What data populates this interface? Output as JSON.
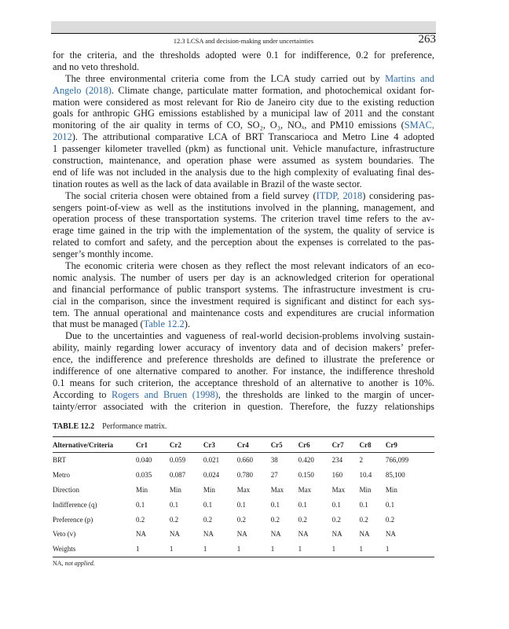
{
  "header": {
    "running_title": "12.3 LCSA and decision-making under uncertainties",
    "page_number": "263"
  },
  "colors": {
    "link": "#2a6bb0",
    "header_bar": "#dcdcdc"
  },
  "paragraphs": [
    {
      "indent": false,
      "lines": [
        [
          {
            "t": "for the criteria, and the thresholds adopted were 0.1 for indifference, 0.2 for preference,"
          }
        ],
        [
          {
            "t": "and no veto threshold."
          }
        ]
      ]
    },
    {
      "indent": true,
      "lines": [
        [
          {
            "t": "The three environmental criteria come from the LCA study carried out by "
          },
          {
            "t": "Martins and",
            "link": true
          }
        ],
        [
          {
            "t": "Angelo (2018)",
            "link": true
          },
          {
            "t": ". Climate change, particulate matter formation, and photochemical oxidant for-"
          }
        ],
        [
          {
            "t": "mation were considered as most relevant for Rio de Janeiro city due to the existing reduction"
          }
        ],
        [
          {
            "t": "goals for anthropic GHG emissions established by a municipal law of 2011 and the constant"
          }
        ],
        [
          {
            "t": "monitoring of the air quality in terms of CO, SO₂, O₃, NOₓ, and PM10 emissions ("
          },
          {
            "t": "SMAC,",
            "link": true
          }
        ],
        [
          {
            "t": "2012",
            "link": true
          },
          {
            "t": "). The attributional comparative LCA of BRT Transcarioca and Metro Line 4 adopted"
          }
        ],
        [
          {
            "t": "1 passenger kilometer travelled (pkm) as functional unit. Vehicle manufacture, infrastructure"
          }
        ],
        [
          {
            "t": "construction, maintenance, and operation phase were assumed as system boundaries. The"
          }
        ],
        [
          {
            "t": "end of life was not included in the analysis due to the high complexity of evaluating final des-"
          }
        ],
        [
          {
            "t": "tination routes as well as the lack of data available in Brazil of the waste sector."
          }
        ]
      ]
    },
    {
      "indent": true,
      "lines": [
        [
          {
            "t": "The social criteria chosen were obtained from a field survey ("
          },
          {
            "t": "ITDP, 2018",
            "link": true
          },
          {
            "t": ") considering pas-"
          }
        ],
        [
          {
            "t": "sengers point-of-view as well as the institutions involved in the planning, management, and"
          }
        ],
        [
          {
            "t": "operation process of these transportation systems. The criterion travel time refers to the av-"
          }
        ],
        [
          {
            "t": "erage time gained in the trip with the implementation of the system, the quality of service is"
          }
        ],
        [
          {
            "t": "related to comfort and safety, and the perception about the expenses is correlated to the pas-"
          }
        ],
        [
          {
            "t": "senger’s monthly income."
          }
        ]
      ]
    },
    {
      "indent": true,
      "lines": [
        [
          {
            "t": "The economic criteria were chosen as they reflect the most relevant indicators of an eco-"
          }
        ],
        [
          {
            "t": "nomic analysis. The number of users per day is an acknowledged criterion for operational"
          }
        ],
        [
          {
            "t": "and financial performance of public transport systems. The infrastructure investment is cru-"
          }
        ],
        [
          {
            "t": "cial in the comparison, since the investment required is significant and distinct for each sys-"
          }
        ],
        [
          {
            "t": "tem. The annual operational and maintenance costs and expenditures are crucial information"
          }
        ],
        [
          {
            "t": "that must be managed ("
          },
          {
            "t": "Table 12.2",
            "link": true
          },
          {
            "t": ")."
          }
        ]
      ]
    },
    {
      "indent": true,
      "last_justified": true,
      "lines": [
        [
          {
            "t": "Due to the uncertainties and vagueness of real-world decision-problems involving sustain-"
          }
        ],
        [
          {
            "t": "ability, mainly regarding lower accuracy of inventory data and of decision makers’ prefer-"
          }
        ],
        [
          {
            "t": "ence, the indifference and preference thresholds are defined to illustrate the preference or"
          }
        ],
        [
          {
            "t": "indifference of one alternative compared to another. For instance, the indifference threshold"
          }
        ],
        [
          {
            "t": "0.1 means for such criterion, the acceptance threshold of an alternative to another is 10%."
          }
        ],
        [
          {
            "t": "According to "
          },
          {
            "t": "Rogers and Bruen (1998)",
            "link": true
          },
          {
            "t": ", the thresholds are linked to the margin of uncer-"
          }
        ],
        [
          {
            "t": "tainty/error associated with the criterion in question. Therefore, the fuzzy relationships"
          }
        ]
      ]
    }
  ],
  "table": {
    "label": "TABLE 12.2",
    "title": "Performance matrix.",
    "headers": [
      "Alternative/Criteria",
      "Cr1",
      "Cr2",
      "Cr3",
      "Cr4",
      "Cr5",
      "Cr6",
      "Cr7",
      "Cr8",
      "Cr9"
    ],
    "rows": [
      [
        "BRT",
        "0.040",
        "0.059",
        "0.021",
        "0.660",
        "38",
        "0.420",
        "234",
        "2",
        "766,099"
      ],
      [
        "Metro",
        "0.035",
        "0.087",
        "0.024",
        "0.780",
        "27",
        "0.150",
        "160",
        "10.4",
        "85,100"
      ],
      [
        "Direction",
        "Min",
        "Min",
        "Min",
        "Max",
        "Max",
        "Max",
        "Max",
        "Min",
        "Min"
      ],
      [
        "Indifference (q)",
        "0.1",
        "0.1",
        "0.1",
        "0.1",
        "0.1",
        "0.1",
        "0.1",
        "0.1",
        "0.1"
      ],
      [
        "Preference (p)",
        "0.2",
        "0.2",
        "0.2",
        "0.2",
        "0.2",
        "0.2",
        "0.2",
        "0.2",
        "0.2"
      ],
      [
        "Veto (v)",
        "NA",
        "NA",
        "NA",
        "NA",
        "NA",
        "NA",
        "NA",
        "NA",
        "NA"
      ],
      [
        "Weights",
        "1",
        "1",
        "1",
        "1",
        "1",
        "1",
        "1",
        "1",
        "1"
      ]
    ],
    "footnote_abbr": "NA,",
    "footnote_text": "not applied."
  }
}
